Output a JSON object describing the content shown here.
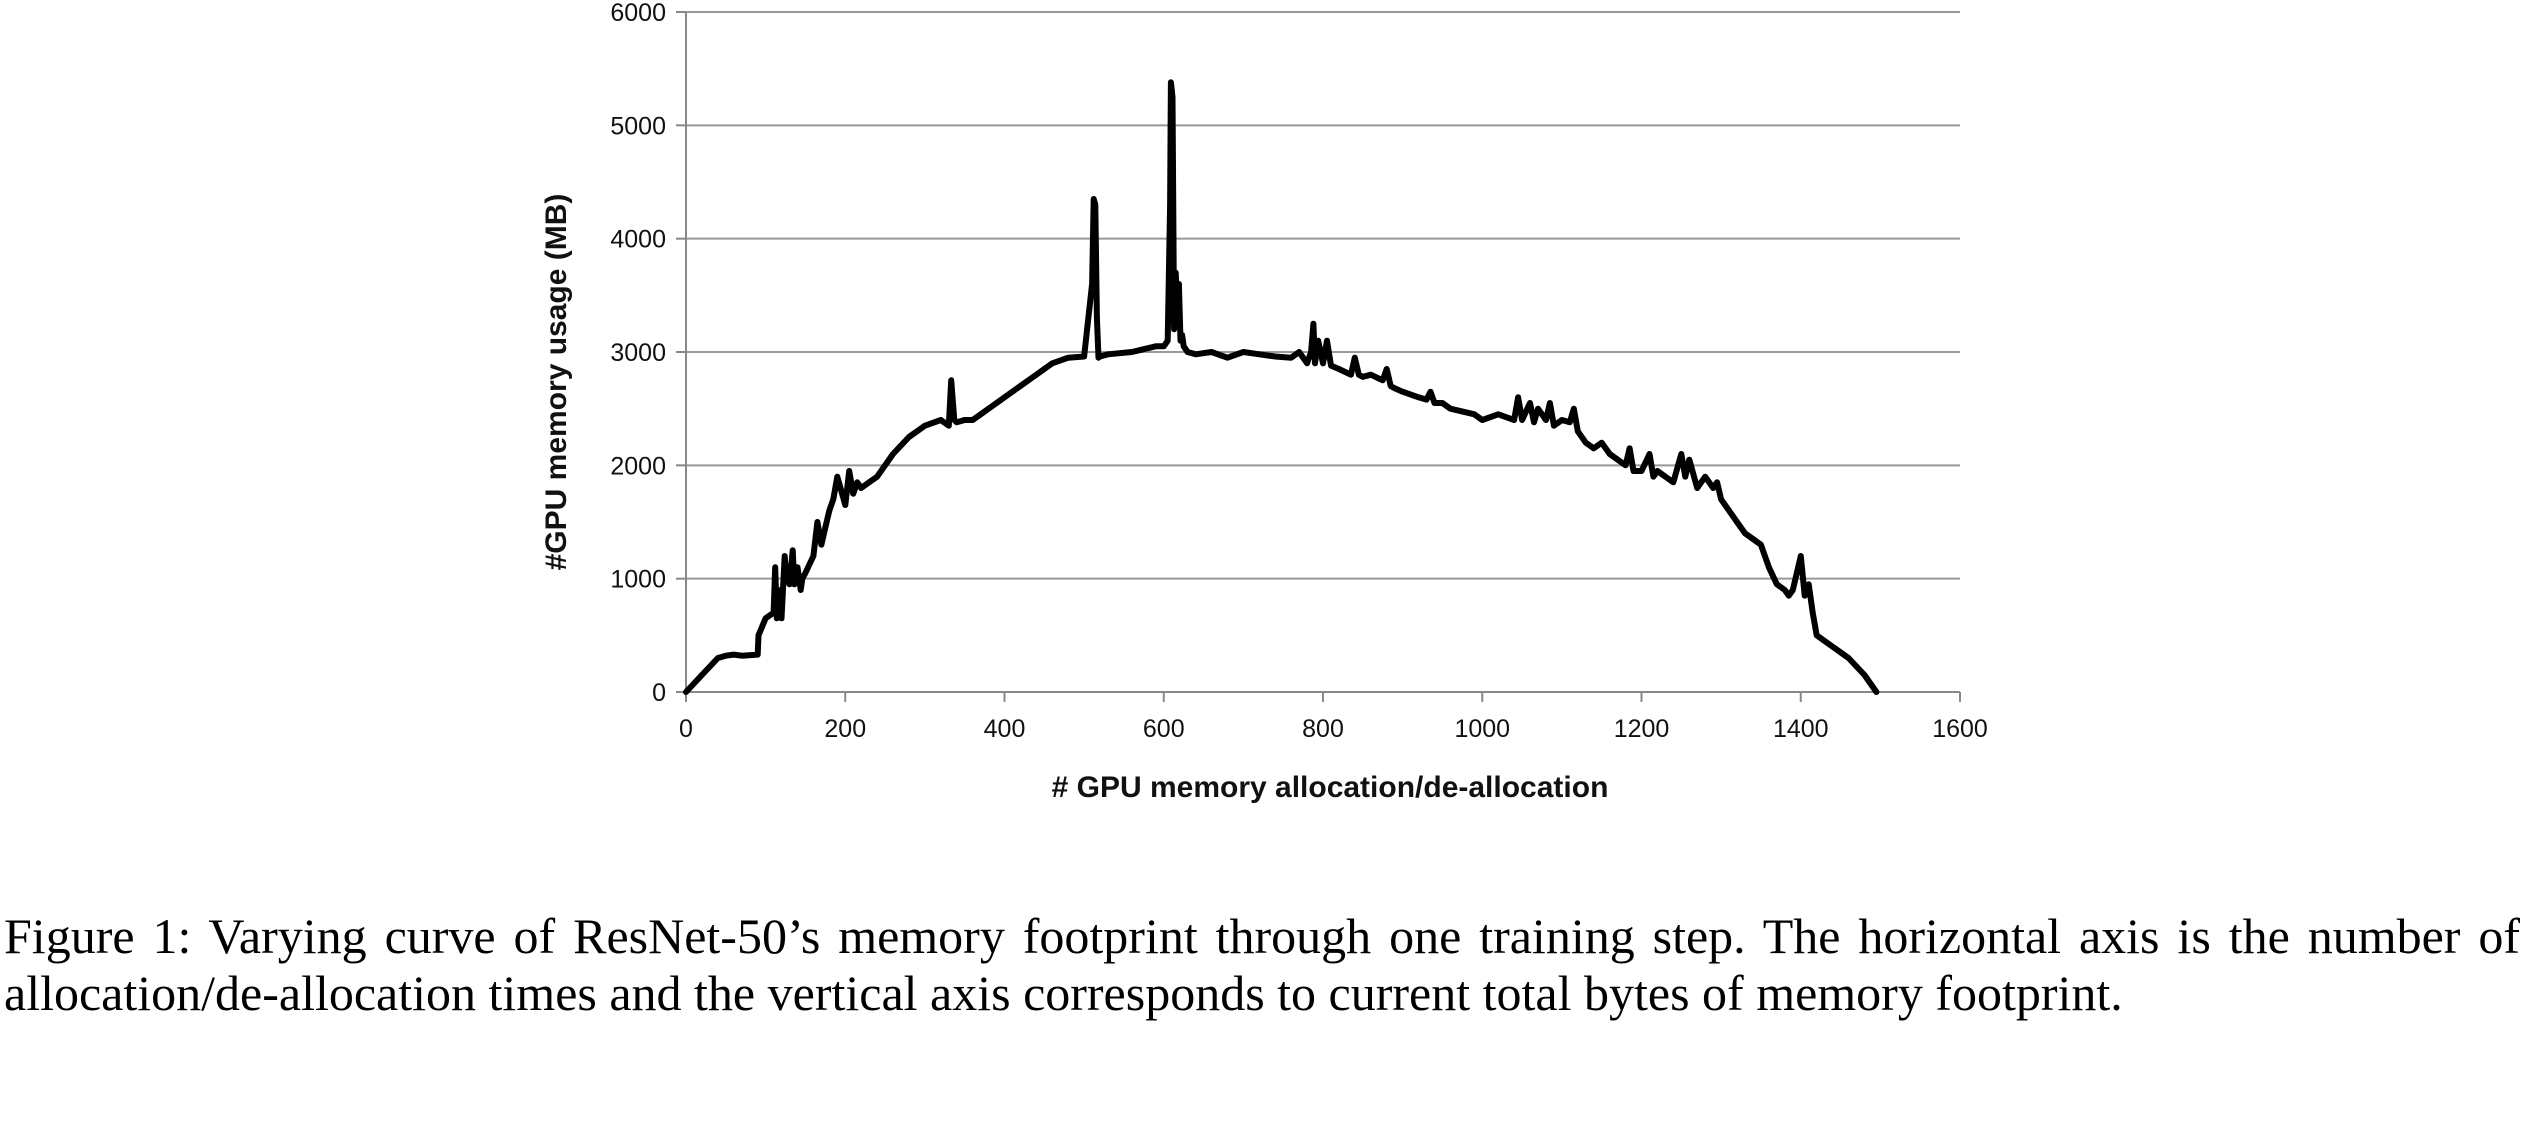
{
  "chart_data": {
    "type": "line",
    "title": "",
    "xlabel": "# GPU memory allocation/de-allocation",
    "ylabel": "#GPU memory usage (MB)",
    "xlim": [
      0,
      1600
    ],
    "ylim": [
      0,
      6000
    ],
    "x_ticks": [
      "0",
      "200",
      "400",
      "600",
      "800",
      "1000",
      "1200",
      "1400",
      "1600"
    ],
    "y_ticks": [
      "0",
      "1000",
      "2000",
      "3000",
      "4000",
      "5000",
      "6000"
    ],
    "grid": "horizontal",
    "line_color": "#000000",
    "grid_color": "#999999",
    "series": [
      {
        "x": [
          0,
          20,
          40,
          50,
          60,
          70,
          90,
          91,
          100,
          110,
          112,
          114,
          116,
          120,
          124,
          126,
          130,
          134,
          136,
          140,
          144,
          146,
          150,
          160,
          165,
          170,
          175,
          180,
          185,
          190,
          200,
          205,
          210,
          215,
          220,
          230,
          240,
          260,
          280,
          300,
          320,
          330,
          333,
          337,
          340,
          350,
          360,
          380,
          400,
          420,
          440,
          460,
          480,
          500,
          510,
          512,
          514,
          516,
          518,
          520,
          530,
          560,
          590,
          600,
          605,
          608,
          609,
          611,
          613,
          615,
          617,
          619,
          621,
          623,
          625,
          630,
          640,
          660,
          680,
          700,
          720,
          740,
          760,
          770,
          780,
          785,
          788,
          790,
          794,
          800,
          805,
          810,
          820,
          835,
          840,
          845,
          850,
          860,
          875,
          880,
          885,
          890,
          900,
          920,
          930,
          935,
          940,
          950,
          960,
          990,
          1000,
          1020,
          1040,
          1045,
          1050,
          1060,
          1065,
          1070,
          1080,
          1085,
          1090,
          1100,
          1110,
          1115,
          1120,
          1130,
          1140,
          1150,
          1160,
          1180,
          1185,
          1190,
          1200,
          1210,
          1215,
          1220,
          1230,
          1240,
          1250,
          1255,
          1260,
          1270,
          1280,
          1290,
          1295,
          1300,
          1310,
          1320,
          1330,
          1340,
          1350,
          1360,
          1370,
          1380,
          1385,
          1390,
          1395,
          1400,
          1405,
          1410,
          1415,
          1420,
          1440,
          1460,
          1480,
          1495
        ],
        "y": [
          0,
          150,
          300,
          320,
          330,
          320,
          330,
          500,
          650,
          700,
          1100,
          650,
          900,
          650,
          1200,
          1000,
          950,
          1250,
          950,
          1100,
          900,
          1000,
          1050,
          1200,
          1500,
          1300,
          1450,
          1600,
          1700,
          1900,
          1650,
          1950,
          1750,
          1850,
          1800,
          1850,
          1900,
          2100,
          2250,
          2350,
          2400,
          2350,
          2750,
          2400,
          2380,
          2400,
          2400,
          2500,
          2600,
          2700,
          2800,
          2900,
          2950,
          2960,
          3600,
          4350,
          4300,
          3300,
          2950,
          2960,
          2980,
          3000,
          3050,
          3050,
          3100,
          4300,
          5380,
          5250,
          3200,
          3700,
          3400,
          3600,
          3100,
          3150,
          3050,
          3000,
          2980,
          3000,
          2950,
          3000,
          2980,
          2960,
          2950,
          3000,
          2900,
          3000,
          3250,
          2900,
          3100,
          2900,
          3100,
          2880,
          2850,
          2800,
          2950,
          2800,
          2780,
          2800,
          2750,
          2850,
          2700,
          2680,
          2650,
          2600,
          2580,
          2650,
          2550,
          2550,
          2500,
          2450,
          2400,
          2450,
          2400,
          2600,
          2400,
          2550,
          2380,
          2500,
          2400,
          2550,
          2350,
          2400,
          2380,
          2500,
          2300,
          2200,
          2150,
          2200,
          2100,
          2000,
          2150,
          1950,
          1950,
          2100,
          1900,
          1950,
          1900,
          1850,
          2100,
          1900,
          2050,
          1800,
          1900,
          1800,
          1850,
          1700,
          1600,
          1500,
          1400,
          1350,
          1300,
          1100,
          950,
          900,
          850,
          900,
          1050,
          1200,
          850,
          950,
          700,
          500,
          400,
          300,
          150,
          0
        ]
      }
    ]
  },
  "caption": "Figure 1: Varying curve of ResNet-50’s memory footprint through one training step. The horizontal axis is the number of allocation/de-allocation times and the vertical axis corresponds to current total bytes of memory footprint."
}
